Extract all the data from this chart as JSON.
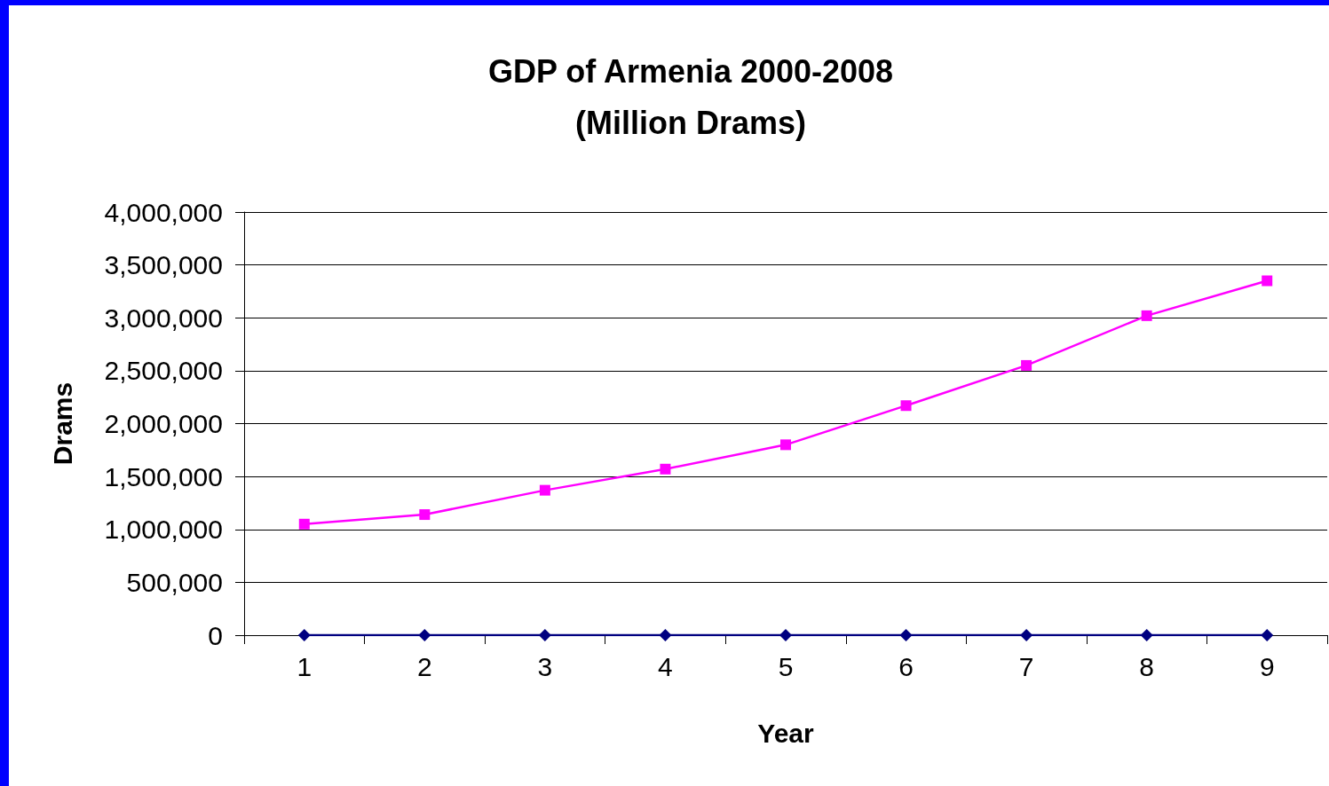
{
  "chart_data": {
    "type": "line",
    "title": "GDP of Armenia 2000-2008\n(Million Drams)",
    "xlabel": "Year",
    "ylabel": "Drams",
    "categories": [
      "1",
      "2",
      "3",
      "4",
      "5",
      "6",
      "7",
      "8",
      "9"
    ],
    "series": [
      {
        "color": "#000080",
        "marker": "diamond",
        "values": [
          0,
          0,
          0,
          0,
          0,
          0,
          0,
          0,
          0
        ]
      },
      {
        "color": "#ff00ff",
        "marker": "square",
        "values": [
          1050000,
          1140000,
          1370000,
          1570000,
          1800000,
          2170000,
          2550000,
          3020000,
          3350000
        ]
      }
    ],
    "ylim": [
      0,
      4000000
    ],
    "yticks": [
      0,
      {
        "value": 500000,
        "label": "500,000"
      },
      {
        "value": 1000000,
        "label": "1,000,000"
      },
      {
        "value": 1500000,
        "label": "1,500,000"
      },
      {
        "value": 2000000,
        "label": "2,000,000"
      },
      {
        "value": 2500000,
        "label": "2,500,000"
      },
      {
        "value": 3000000,
        "label": "3,000,000"
      },
      {
        "value": 3500000,
        "label": "3,500,000"
      },
      {
        "value": 4000000,
        "label": "4,000,000"
      }
    ],
    "grid": "y",
    "line_style": "solid"
  }
}
